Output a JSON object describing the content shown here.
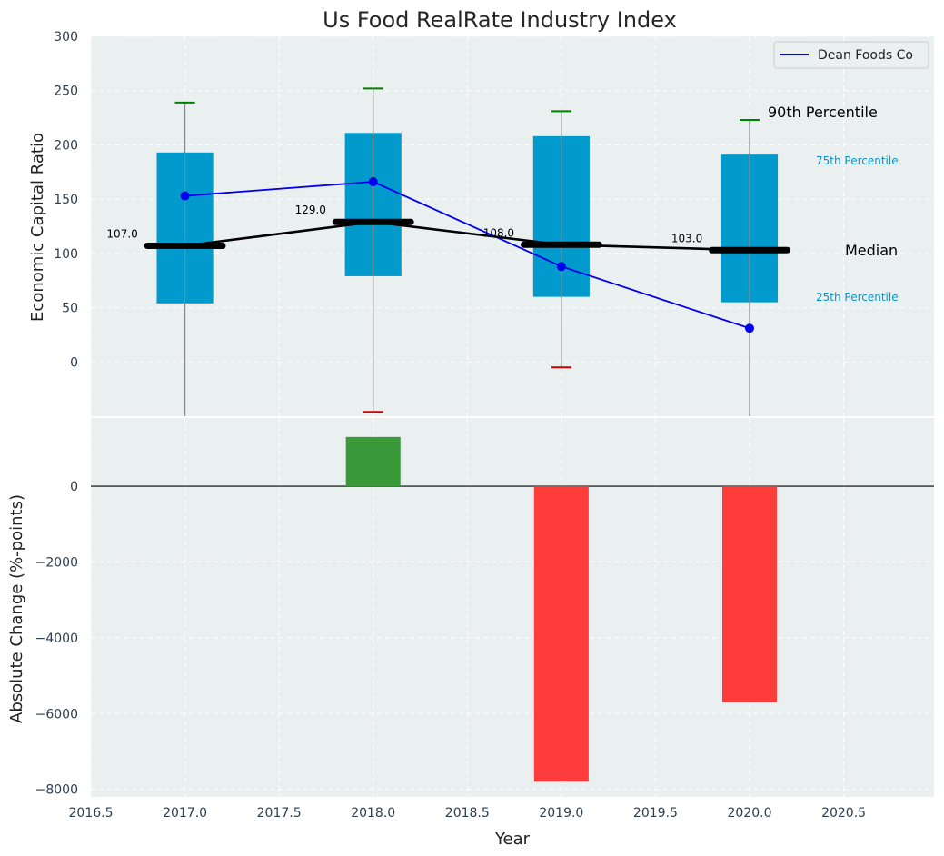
{
  "chart_data": [
    {
      "type": "box",
      "title": "Us Food RealRate Industry Index",
      "ylabel": "Economic Capital Ratio",
      "ylim": [
        -50,
        300
      ],
      "yticks": [
        0,
        50,
        100,
        150,
        200,
        250,
        300
      ],
      "grid": true,
      "legend": {
        "entries": [
          "Dean Foods Co"
        ],
        "position": "top-right"
      },
      "boxes": [
        {
          "x": 2017,
          "q1": 54,
          "q3": 193,
          "median": 107,
          "p90": 239,
          "p10": null,
          "median_label": "107.0"
        },
        {
          "x": 2018,
          "q1": 79,
          "q3": 211,
          "median": 129,
          "p90": 252,
          "p10": -46,
          "median_label": "129.0"
        },
        {
          "x": 2019,
          "q1": 60,
          "q3": 208,
          "median": 108,
          "p90": 231,
          "p10": -5,
          "median_label": "108.0"
        },
        {
          "x": 2020,
          "q1": 55,
          "q3": 191,
          "median": 103,
          "p90": 223,
          "p10": null,
          "median_label": "103.0"
        }
      ],
      "series": [
        {
          "name": "Dean Foods Co",
          "x": [
            2017,
            2018,
            2019,
            2020
          ],
          "values": [
            153,
            166,
            88,
            31
          ]
        },
        {
          "x": [
            2017,
            2018,
            2019,
            2020
          ],
          "values": [
            107,
            129,
            108,
            103
          ]
        }
      ],
      "annotations": {
        "p90": "90th Percentile",
        "p75": "75th Percentile",
        "median": "Median",
        "p25": "25th Percentile"
      }
    },
    {
      "type": "bar",
      "xlabel": "Year",
      "ylabel": "Absolute Change (%-points)",
      "xlim": [
        2016.5,
        2020.98
      ],
      "xticks": [
        "2016.5",
        "2017.0",
        "2017.5",
        "2018.0",
        "2018.5",
        "2019.0",
        "2019.5",
        "2020.0",
        "2020.5"
      ],
      "ylim": [
        -8200,
        1800
      ],
      "yticks": [
        -8000,
        -6000,
        -4000,
        -2000,
        0
      ],
      "grid": true,
      "x": [
        2018,
        2019,
        2020
      ],
      "values": [
        1300,
        -7800,
        -5700
      ]
    }
  ],
  "colors": {
    "box": "#009acd",
    "company_line": "#0000ee",
    "median_line": "#000000",
    "positive": "#3a9a3a",
    "negative": "#ff3c3c",
    "p90_cap": "#008000",
    "p10_cap": "#d00000",
    "plot_bg": "#eaeff0"
  }
}
